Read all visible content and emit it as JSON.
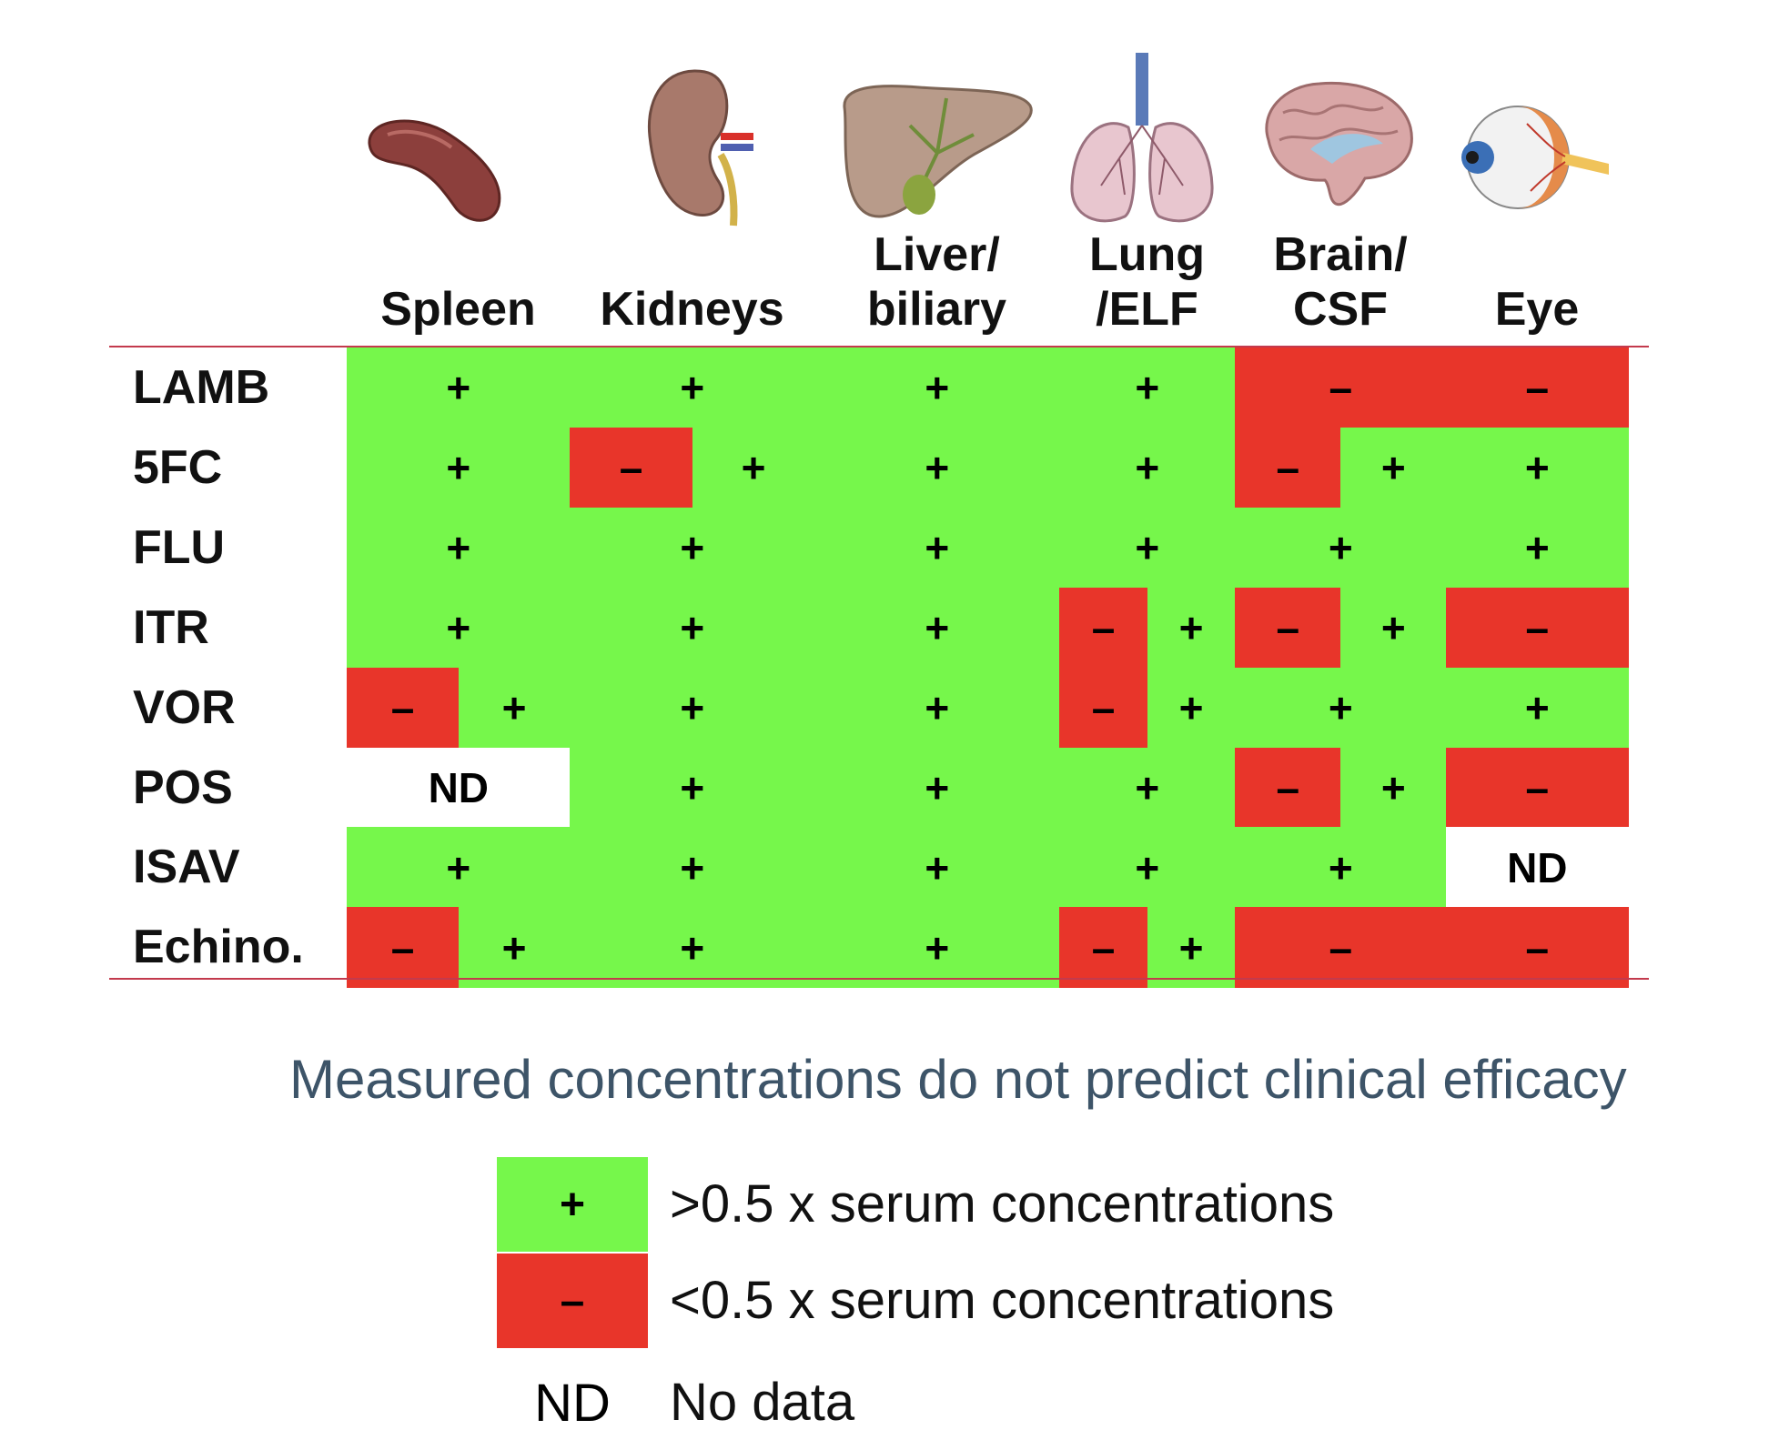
{
  "organs": [
    {
      "label_lines": [
        "Spleen"
      ],
      "icon": "spleen-icon"
    },
    {
      "label_lines": [
        "Kidneys"
      ],
      "icon": "kidney-icon"
    },
    {
      "label_lines": [
        "Liver/",
        "biliary"
      ],
      "icon": "liver-icon"
    },
    {
      "label_lines": [
        "Lung",
        "/ELF"
      ],
      "icon": "lung-icon"
    },
    {
      "label_lines": [
        "Brain/",
        "CSF"
      ],
      "icon": "brain-icon"
    },
    {
      "label_lines": [
        "Eye"
      ],
      "icon": "eye-icon"
    }
  ],
  "drugs": [
    "LAMB",
    "5FC",
    "FLU",
    "ITR",
    "VOR",
    "POS",
    "ISAV",
    "Echino."
  ],
  "matrix": [
    [
      [
        "+"
      ],
      [
        "+"
      ],
      [
        "+"
      ],
      [
        "+"
      ],
      [
        "–"
      ],
      [
        "–"
      ]
    ],
    [
      [
        "+"
      ],
      [
        "–",
        "+"
      ],
      [
        "+"
      ],
      [
        "+"
      ],
      [
        "–",
        "+"
      ],
      [
        "+"
      ]
    ],
    [
      [
        "+"
      ],
      [
        "+"
      ],
      [
        "+"
      ],
      [
        "+"
      ],
      [
        "+"
      ],
      [
        "+"
      ]
    ],
    [
      [
        "+"
      ],
      [
        "+"
      ],
      [
        "+"
      ],
      [
        "–",
        "+"
      ],
      [
        "–",
        "+"
      ],
      [
        "–"
      ]
    ],
    [
      [
        "–",
        "+"
      ],
      [
        "+"
      ],
      [
        "+"
      ],
      [
        "–",
        "+"
      ],
      [
        "+"
      ],
      [
        "+"
      ]
    ],
    [
      [
        "ND"
      ],
      [
        "+"
      ],
      [
        "+"
      ],
      [
        "+"
      ],
      [
        "–",
        "+"
      ],
      [
        "–"
      ]
    ],
    [
      [
        "+"
      ],
      [
        "+"
      ],
      [
        "+"
      ],
      [
        "+"
      ],
      [
        "+"
      ],
      [
        "ND"
      ]
    ],
    [
      [
        "–",
        "+"
      ],
      [
        "+"
      ],
      [
        "+"
      ],
      [
        "–",
        "+"
      ],
      [
        "–"
      ],
      [
        "–"
      ]
    ]
  ],
  "note": "Measured concentrations do not predict clinical efficacy",
  "legend": [
    {
      "symbol": "+",
      "text": ">0.5 x serum concentrations",
      "color": "#76f74b"
    },
    {
      "symbol": "–",
      "text": "<0.5 x serum concentrations",
      "color": "#e8352a"
    },
    {
      "symbol": "ND",
      "text": "No data",
      "color": "#ffffff"
    }
  ],
  "colors": {
    "plus": "#76f74b",
    "minus": "#e8352a",
    "rule": "#c33a4d",
    "note": "#3d5468"
  }
}
